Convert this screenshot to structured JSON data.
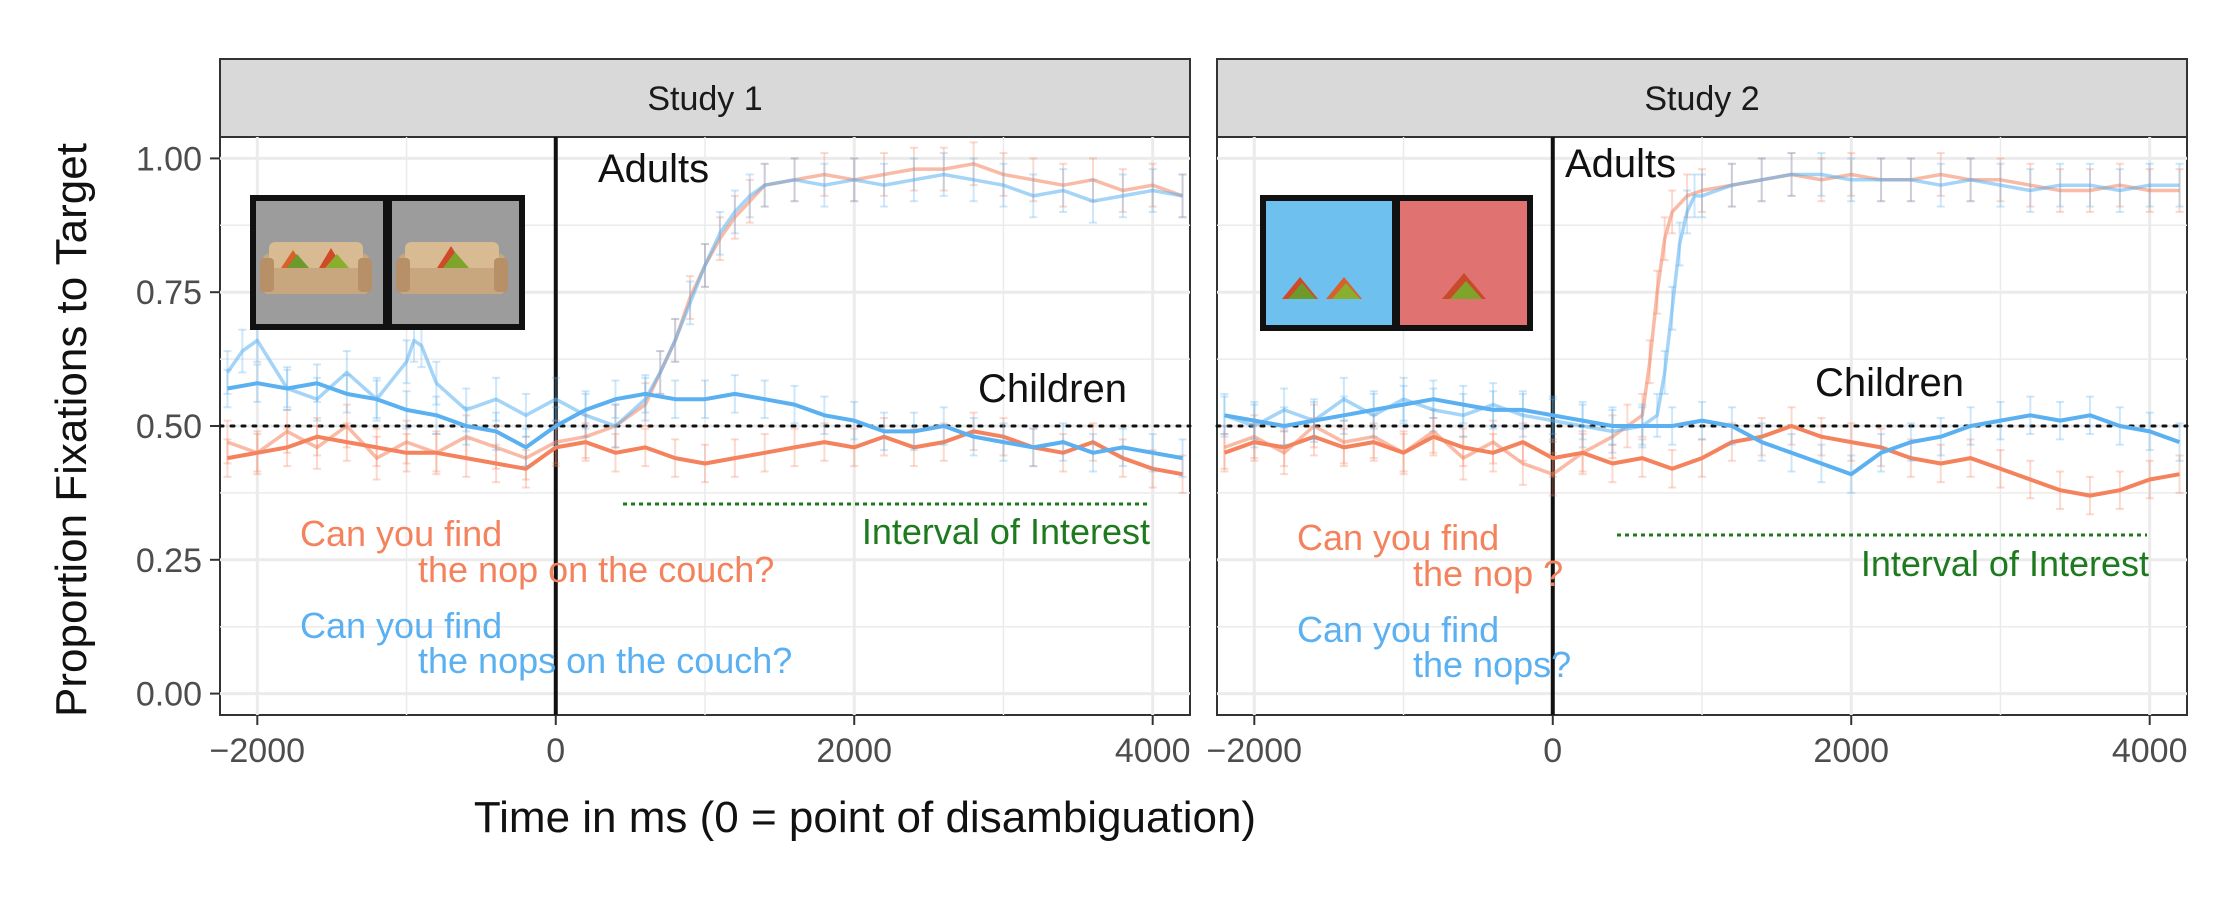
{
  "figure": {
    "ylabel": "Proportion Fixations to Target",
    "xlabel": "Time in ms (0 = point of disambiguation)"
  },
  "colors": {
    "singular": "#F4825C",
    "plural": "#5AB0F0",
    "interval": "#1E7A1E",
    "strip": "#D9D9D9",
    "grid": "#EBEBEB"
  },
  "chart_data": [
    {
      "type": "line",
      "panel": "Study 1",
      "xlim": [
        -2250,
        4250
      ],
      "ylim": [
        -0.04,
        1.04
      ],
      "x_ticks": [
        -2000,
        0,
        2000,
        4000
      ],
      "x_tick_labels": [
        "−2000",
        "0",
        "2000",
        "4000"
      ],
      "y_ticks": [
        0,
        0.25,
        0.5,
        0.75,
        1
      ],
      "y_tick_labels": [
        "0.00",
        "0.25",
        "0.50",
        "0.75",
        "1.00"
      ],
      "chance_level": 0.5,
      "onset": 0,
      "interval_of_interest": {
        "label": "Interval of Interest",
        "x": [
          450,
          4000
        ],
        "y": 0.355
      },
      "group_labels": [
        {
          "text": "Adults",
          "x": 300,
          "y": 0.985
        },
        {
          "text": "Children",
          "x": 3000,
          "y": 0.565
        }
      ],
      "prompts": [
        {
          "role": "singular",
          "line1": "Can you find",
          "line2": "the nop on the couch?"
        },
        {
          "role": "plural",
          "line1": "Can you find",
          "line2": "the nops on the couch?"
        }
      ],
      "series": [
        {
          "role": "singular",
          "group": "adults",
          "x": [
            -2200,
            -2000,
            -1800,
            -1600,
            -1400,
            -1200,
            -1000,
            -800,
            -600,
            -400,
            -200,
            0,
            200,
            400,
            600,
            700,
            800,
            900,
            1000,
            1100,
            1200,
            1300,
            1400,
            1600,
            1800,
            2000,
            2200,
            2400,
            2600,
            2800,
            3000,
            3200,
            3400,
            3600,
            3800,
            4000,
            4200
          ],
          "y": [
            0.47,
            0.45,
            0.49,
            0.46,
            0.5,
            0.44,
            0.47,
            0.45,
            0.48,
            0.46,
            0.44,
            0.47,
            0.48,
            0.5,
            0.54,
            0.6,
            0.66,
            0.74,
            0.8,
            0.85,
            0.89,
            0.92,
            0.95,
            0.96,
            0.97,
            0.96,
            0.97,
            0.98,
            0.98,
            0.99,
            0.97,
            0.96,
            0.95,
            0.96,
            0.94,
            0.95,
            0.93
          ]
        },
        {
          "role": "plural",
          "group": "adults",
          "x": [
            -2200,
            -2100,
            -2000,
            -1800,
            -1600,
            -1400,
            -1200,
            -1000,
            -950,
            -900,
            -800,
            -600,
            -400,
            -200,
            0,
            200,
            400,
            600,
            700,
            800,
            900,
            1000,
            1100,
            1200,
            1300,
            1400,
            1600,
            1800,
            2000,
            2200,
            2400,
            2600,
            2800,
            3000,
            3200,
            3400,
            3600,
            3800,
            4000,
            4200
          ],
          "y": [
            0.6,
            0.64,
            0.66,
            0.57,
            0.55,
            0.6,
            0.55,
            0.62,
            0.66,
            0.65,
            0.58,
            0.53,
            0.55,
            0.52,
            0.55,
            0.52,
            0.5,
            0.55,
            0.6,
            0.66,
            0.73,
            0.8,
            0.86,
            0.9,
            0.93,
            0.95,
            0.96,
            0.95,
            0.96,
            0.95,
            0.96,
            0.97,
            0.96,
            0.95,
            0.93,
            0.94,
            0.92,
            0.93,
            0.94,
            0.93
          ]
        },
        {
          "role": "singular",
          "group": "children",
          "x": [
            -2200,
            -2000,
            -1800,
            -1600,
            -1400,
            -1200,
            -1000,
            -800,
            -600,
            -400,
            -200,
            0,
            200,
            400,
            600,
            800,
            1000,
            1200,
            1400,
            1600,
            1800,
            2000,
            2200,
            2400,
            2600,
            2800,
            3000,
            3200,
            3400,
            3600,
            3800,
            4000,
            4200
          ],
          "y": [
            0.44,
            0.45,
            0.46,
            0.48,
            0.47,
            0.46,
            0.45,
            0.45,
            0.44,
            0.43,
            0.42,
            0.46,
            0.47,
            0.45,
            0.46,
            0.44,
            0.43,
            0.44,
            0.45,
            0.46,
            0.47,
            0.46,
            0.48,
            0.46,
            0.47,
            0.49,
            0.48,
            0.46,
            0.45,
            0.47,
            0.44,
            0.42,
            0.41
          ]
        },
        {
          "role": "plural",
          "group": "children",
          "x": [
            -2200,
            -2000,
            -1800,
            -1600,
            -1400,
            -1200,
            -1000,
            -800,
            -600,
            -400,
            -200,
            0,
            200,
            400,
            600,
            800,
            1000,
            1200,
            1400,
            1600,
            1800,
            2000,
            2200,
            2400,
            2600,
            2800,
            3000,
            3200,
            3400,
            3600,
            3800,
            4000,
            4200
          ],
          "y": [
            0.57,
            0.58,
            0.57,
            0.58,
            0.56,
            0.55,
            0.53,
            0.52,
            0.5,
            0.49,
            0.46,
            0.5,
            0.53,
            0.55,
            0.56,
            0.55,
            0.55,
            0.56,
            0.55,
            0.54,
            0.52,
            0.51,
            0.49,
            0.49,
            0.5,
            0.48,
            0.47,
            0.46,
            0.47,
            0.45,
            0.46,
            0.45,
            0.44
          ]
        }
      ]
    },
    {
      "type": "line",
      "panel": "Study 2",
      "xlim": [
        -2250,
        4250
      ],
      "ylim": [
        -0.04,
        1.04
      ],
      "x_ticks": [
        -2000,
        0,
        2000,
        4000
      ],
      "x_tick_labels": [
        "−2000",
        "0",
        "2000",
        "4000"
      ],
      "y_ticks": [
        0,
        0.25,
        0.5,
        0.75,
        1
      ],
      "y_tick_labels": [
        "0.00",
        "0.25",
        "0.50",
        "0.75",
        "1.00"
      ],
      "chance_level": 0.5,
      "onset": 0,
      "interval_of_interest": {
        "label": "Interval of Interest",
        "x": [
          400,
          4000
        ],
        "y": 0.3
      },
      "group_labels": [
        {
          "text": "Adults",
          "x": 70,
          "y": 0.995
        },
        {
          "text": "Children",
          "x": 1780,
          "y": 0.575
        }
      ],
      "prompts": [
        {
          "role": "singular",
          "line1": "Can you find",
          "line2": "the nop ?"
        },
        {
          "role": "plural",
          "line1": "Can you find",
          "line2": "the nops?"
        }
      ],
      "series": [
        {
          "role": "singular",
          "group": "adults",
          "x": [
            -2200,
            -2000,
            -1800,
            -1600,
            -1400,
            -1200,
            -1000,
            -800,
            -600,
            -400,
            -200,
            0,
            200,
            400,
            500,
            600,
            650,
            700,
            750,
            800,
            900,
            1000,
            1200,
            1400,
            1600,
            1800,
            2000,
            2200,
            2400,
            2600,
            2800,
            3000,
            3200,
            3400,
            3600,
            3800,
            4000,
            4200
          ],
          "y": [
            0.46,
            0.48,
            0.45,
            0.5,
            0.47,
            0.48,
            0.45,
            0.49,
            0.44,
            0.47,
            0.43,
            0.41,
            0.45,
            0.48,
            0.5,
            0.52,
            0.62,
            0.75,
            0.85,
            0.9,
            0.93,
            0.94,
            0.95,
            0.96,
            0.97,
            0.96,
            0.97,
            0.96,
            0.96,
            0.97,
            0.96,
            0.96,
            0.95,
            0.94,
            0.94,
            0.95,
            0.94,
            0.94
          ]
        },
        {
          "role": "plural",
          "group": "adults",
          "x": [
            -2200,
            -2000,
            -1800,
            -1600,
            -1400,
            -1200,
            -1000,
            -800,
            -600,
            -400,
            -200,
            0,
            200,
            400,
            600,
            700,
            750,
            800,
            850,
            900,
            950,
            1000,
            1200,
            1400,
            1600,
            1800,
            2000,
            2200,
            2400,
            2600,
            2800,
            3000,
            3200,
            3400,
            3600,
            3800,
            4000,
            4200
          ],
          "y": [
            0.52,
            0.5,
            0.53,
            0.51,
            0.55,
            0.52,
            0.55,
            0.53,
            0.52,
            0.54,
            0.52,
            0.51,
            0.5,
            0.49,
            0.5,
            0.52,
            0.6,
            0.72,
            0.84,
            0.9,
            0.93,
            0.93,
            0.95,
            0.96,
            0.97,
            0.97,
            0.96,
            0.96,
            0.96,
            0.95,
            0.96,
            0.95,
            0.94,
            0.95,
            0.95,
            0.94,
            0.95,
            0.95
          ]
        },
        {
          "role": "singular",
          "group": "children",
          "x": [
            -2200,
            -2000,
            -1800,
            -1600,
            -1400,
            -1200,
            -1000,
            -800,
            -600,
            -400,
            -200,
            0,
            200,
            400,
            600,
            800,
            1000,
            1200,
            1400,
            1600,
            1800,
            2000,
            2200,
            2400,
            2600,
            2800,
            3000,
            3200,
            3400,
            3600,
            3800,
            4000,
            4200
          ],
          "y": [
            0.45,
            0.47,
            0.46,
            0.48,
            0.46,
            0.47,
            0.45,
            0.48,
            0.46,
            0.45,
            0.47,
            0.44,
            0.45,
            0.43,
            0.44,
            0.42,
            0.44,
            0.47,
            0.48,
            0.5,
            0.48,
            0.47,
            0.46,
            0.44,
            0.43,
            0.44,
            0.42,
            0.4,
            0.38,
            0.37,
            0.38,
            0.4,
            0.41
          ]
        },
        {
          "role": "plural",
          "group": "children",
          "x": [
            -2200,
            -2000,
            -1800,
            -1600,
            -1400,
            -1200,
            -1000,
            -800,
            -600,
            -400,
            -200,
            0,
            200,
            400,
            600,
            800,
            1000,
            1200,
            1400,
            1600,
            1800,
            2000,
            2200,
            2400,
            2600,
            2800,
            3000,
            3200,
            3400,
            3600,
            3800,
            4000,
            4200
          ],
          "y": [
            0.52,
            0.51,
            0.5,
            0.51,
            0.52,
            0.53,
            0.54,
            0.55,
            0.54,
            0.53,
            0.53,
            0.52,
            0.51,
            0.5,
            0.5,
            0.5,
            0.51,
            0.5,
            0.47,
            0.45,
            0.43,
            0.41,
            0.45,
            0.47,
            0.48,
            0.5,
            0.51,
            0.52,
            0.51,
            0.52,
            0.5,
            0.49,
            0.47
          ]
        }
      ]
    }
  ]
}
